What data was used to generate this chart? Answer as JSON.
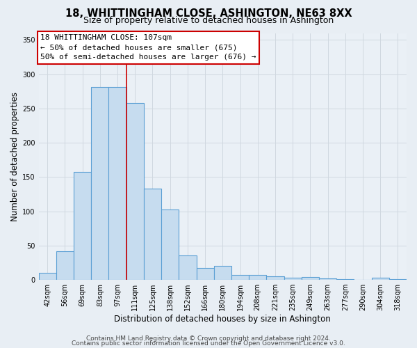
{
  "title": "18, WHITTINGHAM CLOSE, ASHINGTON, NE63 8XX",
  "subtitle": "Size of property relative to detached houses in Ashington",
  "xlabel": "Distribution of detached houses by size in Ashington",
  "ylabel": "Number of detached properties",
  "bar_labels": [
    "42sqm",
    "56sqm",
    "69sqm",
    "83sqm",
    "97sqm",
    "111sqm",
    "125sqm",
    "138sqm",
    "152sqm",
    "166sqm",
    "180sqm",
    "194sqm",
    "208sqm",
    "221sqm",
    "235sqm",
    "249sqm",
    "263sqm",
    "277sqm",
    "290sqm",
    "304sqm",
    "318sqm"
  ],
  "bar_values": [
    10,
    42,
    157,
    281,
    281,
    258,
    133,
    103,
    36,
    17,
    20,
    7,
    7,
    5,
    3,
    4,
    2,
    1,
    0,
    3,
    1
  ],
  "bar_color": "#c6dcef",
  "bar_edge_color": "#5a9fd4",
  "vline_index": 5,
  "vline_color": "#cc0000",
  "annotation_title": "18 WHITTINGHAM CLOSE: 107sqm",
  "annotation_line1": "← 50% of detached houses are smaller (675)",
  "annotation_line2": "50% of semi-detached houses are larger (676) →",
  "ylim": [
    0,
    360
  ],
  "yticks": [
    0,
    50,
    100,
    150,
    200,
    250,
    300,
    350
  ],
  "footer1": "Contains HM Land Registry data © Crown copyright and database right 2024.",
  "footer2": "Contains public sector information licensed under the Open Government Licence v3.0.",
  "bg_color": "#e8eef4",
  "plot_bg_color": "#eaf0f6",
  "grid_color": "#d0d8e0",
  "title_fontsize": 10.5,
  "subtitle_fontsize": 9,
  "axis_label_fontsize": 8.5,
  "tick_fontsize": 7,
  "annotation_fontsize": 8,
  "footer_fontsize": 6.5
}
